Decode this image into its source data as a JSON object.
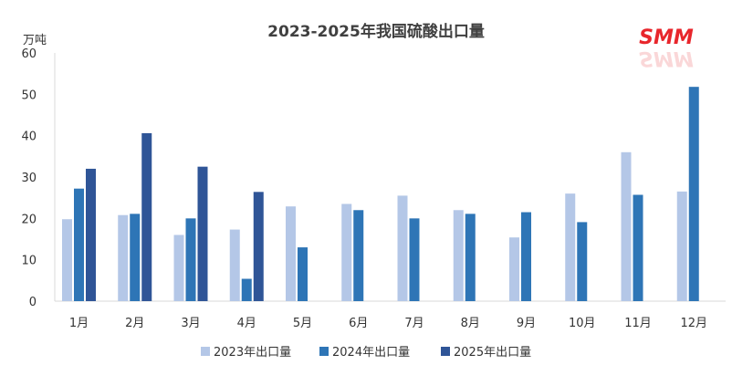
{
  "chart_data": {
    "type": "bar",
    "title": "2023-2025年我国硫酸出口量",
    "ylabel": "万吨",
    "xlabel": "",
    "ylim": [
      0,
      60
    ],
    "yticks": [
      0,
      10,
      20,
      30,
      40,
      50,
      60
    ],
    "grid": false,
    "legend_position": "bottom",
    "categories": [
      "1月",
      "2月",
      "3月",
      "4月",
      "5月",
      "6月",
      "7月",
      "8月",
      "9月",
      "10月",
      "11月",
      "12月"
    ],
    "series": [
      {
        "name": "2023年出口量",
        "color": "#b4c7e7",
        "values": [
          19.8,
          20.8,
          16.0,
          17.3,
          22.9,
          23.5,
          25.5,
          22.0,
          15.4,
          26.0,
          36.0,
          26.5
        ]
      },
      {
        "name": "2024年出口量",
        "color": "#2e75b6",
        "values": [
          27.2,
          21.1,
          20.0,
          5.4,
          13.0,
          22.0,
          20.0,
          21.1,
          21.5,
          19.1,
          25.7,
          51.8
        ]
      },
      {
        "name": "2025年出口量",
        "color": "#2f5597",
        "values": [
          32.0,
          40.6,
          32.5,
          26.4,
          null,
          null,
          null,
          null,
          null,
          null,
          null,
          null
        ]
      }
    ]
  },
  "logo": {
    "text": "SMM",
    "color": "#e8262c"
  }
}
